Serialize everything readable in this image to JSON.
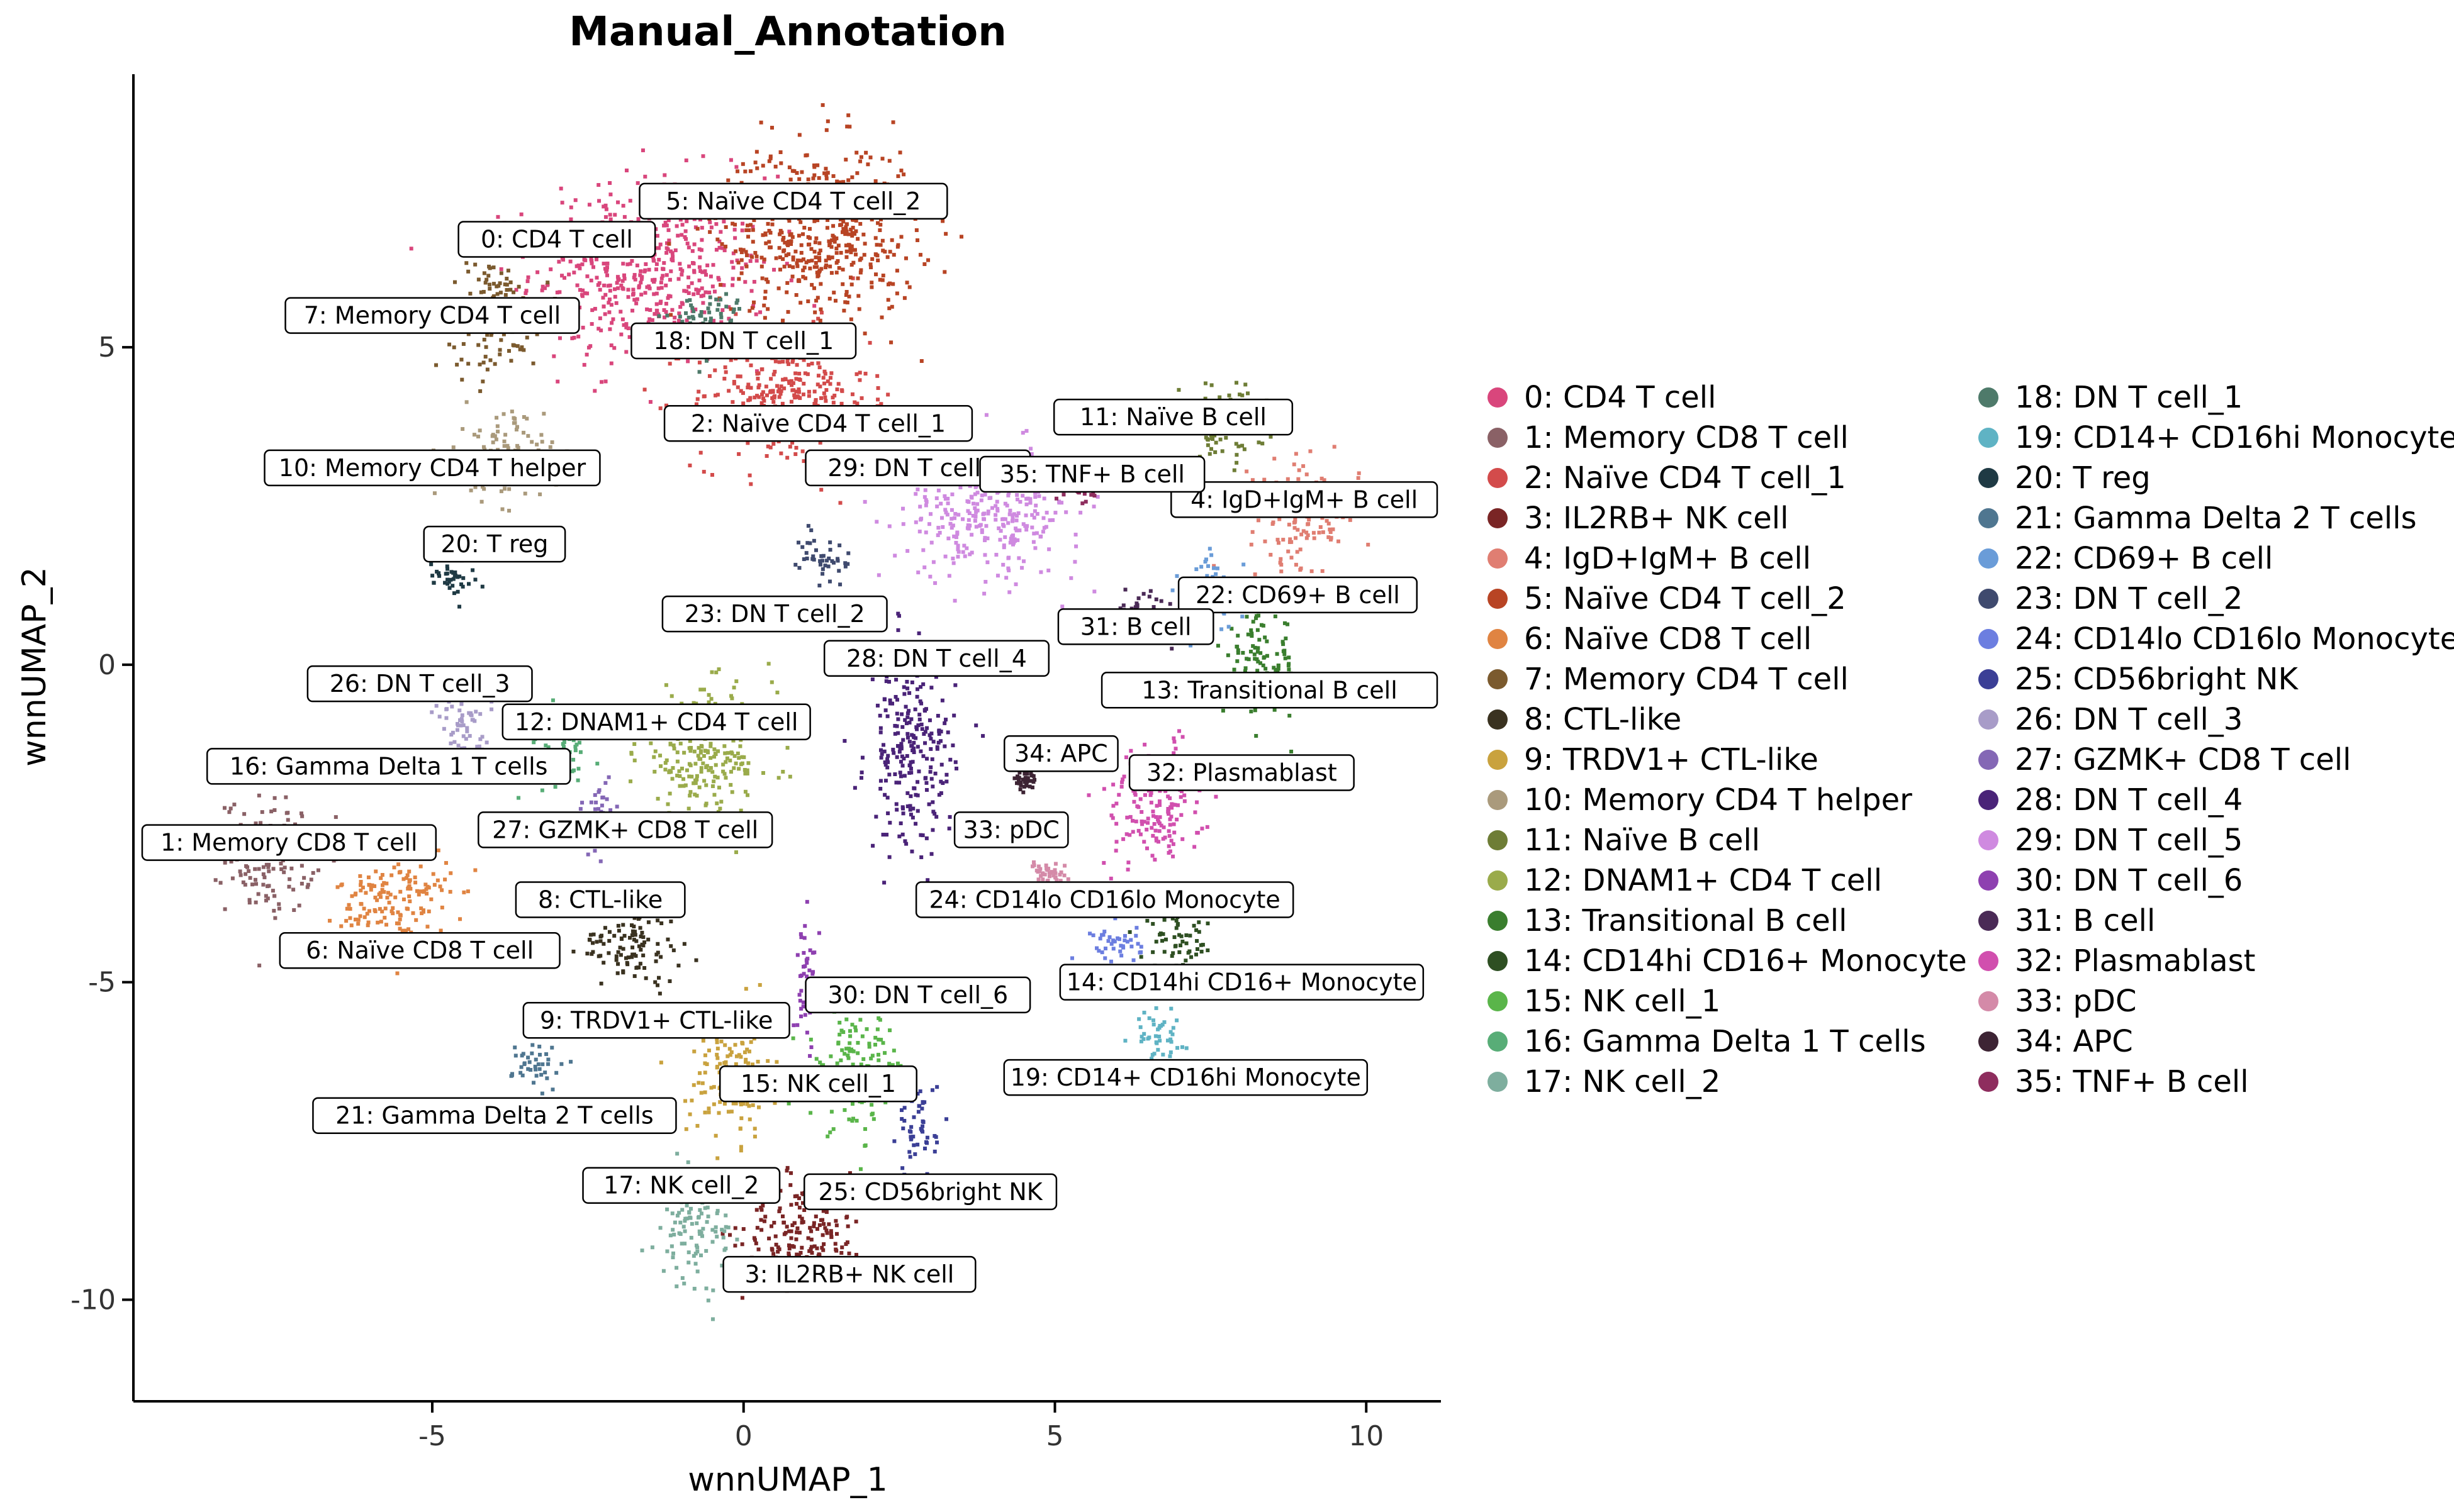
{
  "chart_data": {
    "type": "scatter",
    "title": "Manual_Annotation",
    "xlabel": "wnnUMAP_1",
    "ylabel": "wnnUMAP_2",
    "xlim": [
      -9.8,
      11.2
    ],
    "ylim": [
      -11.6,
      9.3
    ],
    "xticks": [
      -5,
      0,
      5,
      10
    ],
    "yticks": [
      5,
      0,
      -5,
      -10
    ],
    "xtick_labels": [
      "-5",
      "0",
      "5",
      "10"
    ],
    "ytick_labels": [
      "5",
      "0",
      "-5",
      "-10"
    ],
    "grid": false,
    "legend_position": "right",
    "series": [
      {
        "id": 0,
        "name": "0: CD4 T cell",
        "color": "#d9467c",
        "centroid": [
          -1.5,
          6.2
        ],
        "spread": [
          1.9,
          1.5
        ],
        "label_at": [
          -3.0,
          6.7
        ]
      },
      {
        "id": 1,
        "name": "1: Memory CD8 T cell",
        "color": "#8a6166",
        "centroid": [
          -7.6,
          -3.0
        ],
        "spread": [
          0.7,
          0.9
        ],
        "label_at": [
          -7.3,
          -2.8
        ]
      },
      {
        "id": 2,
        "name": "2: Naïve CD4 T cell_1",
        "color": "#d34b4b",
        "centroid": [
          0.6,
          4.2
        ],
        "spread": [
          1.4,
          1.1
        ],
        "label_at": [
          1.2,
          3.8
        ]
      },
      {
        "id": 3,
        "name": "3: IL2RB+ NK cell",
        "color": "#7a2525",
        "centroid": [
          1.0,
          -8.9
        ],
        "spread": [
          1.0,
          0.9
        ],
        "label_at": [
          1.7,
          -9.6
        ]
      },
      {
        "id": 4,
        "name": "4: IgD+IgM+ B cell",
        "color": "#e07e72",
        "centroid": [
          9.0,
          2.4
        ],
        "spread": [
          0.9,
          0.8
        ],
        "label_at": [
          9.5,
          2.6
        ]
      },
      {
        "id": 5,
        "name": "5: Naïve CD4 T cell_2",
        "color": "#b84424",
        "centroid": [
          1.2,
          6.8
        ],
        "spread": [
          1.6,
          1.4
        ],
        "label_at": [
          0.8,
          7.3
        ]
      },
      {
        "id": 6,
        "name": "6: Naïve CD8 T cell",
        "color": "#e08442",
        "centroid": [
          -5.6,
          -3.7
        ],
        "spread": [
          0.9,
          0.8
        ],
        "label_at": [
          -5.2,
          -4.5
        ]
      },
      {
        "id": 7,
        "name": "7: Memory CD4 T cell",
        "color": "#7b5a2e",
        "centroid": [
          -4.0,
          5.5
        ],
        "spread": [
          0.7,
          0.9
        ],
        "label_at": [
          -5.0,
          5.5
        ]
      },
      {
        "id": 8,
        "name": "8: CTL-like",
        "color": "#3a3220",
        "centroid": [
          -1.8,
          -4.4
        ],
        "spread": [
          0.8,
          0.6
        ],
        "label_at": [
          -2.3,
          -3.7
        ]
      },
      {
        "id": 9,
        "name": "9: TRDV1+ CTL-like",
        "color": "#c9a23e",
        "centroid": [
          -0.2,
          -6.5
        ],
        "spread": [
          0.7,
          1.0
        ],
        "label_at": [
          -1.4,
          -5.6
        ]
      },
      {
        "id": 10,
        "name": "10: Memory CD4 T helper",
        "color": "#aa9a7c",
        "centroid": [
          -3.9,
          3.3
        ],
        "spread": [
          0.7,
          0.7
        ],
        "label_at": [
          -5.0,
          3.1
        ]
      },
      {
        "id": 11,
        "name": "11: Naïve B cell",
        "color": "#6e7d36",
        "centroid": [
          7.7,
          3.8
        ],
        "spread": [
          0.7,
          0.6
        ],
        "label_at": [
          6.9,
          3.9
        ]
      },
      {
        "id": 12,
        "name": "12: DNAM1+ CD4 T cell",
        "color": "#9aab4b",
        "centroid": [
          -0.6,
          -1.4
        ],
        "spread": [
          1.1,
          1.0
        ],
        "label_at": [
          -1.4,
          -0.9
        ]
      },
      {
        "id": 13,
        "name": "13: Transitional B cell",
        "color": "#3a7e2e",
        "centroid": [
          8.3,
          0.0
        ],
        "spread": [
          0.6,
          0.8
        ],
        "label_at": [
          8.8,
          -0.4
        ]
      },
      {
        "id": 14,
        "name": "14: CD14hi CD16+ Monocyte",
        "color": "#2e4f22",
        "centroid": [
          7.0,
          -4.4
        ],
        "spread": [
          0.6,
          0.4
        ],
        "label_at": [
          8.0,
          -5.0
        ]
      },
      {
        "id": 15,
        "name": "15: NK cell_1",
        "color": "#5ab54a",
        "centroid": [
          1.8,
          -6.4
        ],
        "spread": [
          0.8,
          0.9
        ],
        "label_at": [
          1.2,
          -6.6
        ]
      },
      {
        "id": 16,
        "name": "16: Gamma Delta 1 T cells",
        "color": "#58ad77",
        "centroid": [
          -3.0,
          -1.4
        ],
        "spread": [
          0.5,
          0.6
        ],
        "label_at": [
          -5.7,
          -1.6
        ]
      },
      {
        "id": 17,
        "name": "17: NK cell_2",
        "color": "#7eae9e",
        "centroid": [
          -0.8,
          -8.9
        ],
        "spread": [
          0.6,
          0.8
        ],
        "label_at": [
          -1.0,
          -8.2
        ]
      },
      {
        "id": 18,
        "name": "18: DN T cell_1",
        "color": "#4e7a6a",
        "centroid": [
          -0.6,
          5.4
        ],
        "spread": [
          0.6,
          0.5
        ],
        "label_at": [
          0.0,
          5.1
        ]
      },
      {
        "id": 19,
        "name": "19: CD14+ CD16hi Monocyte",
        "color": "#5fb3c4",
        "centroid": [
          6.6,
          -5.8
        ],
        "spread": [
          0.5,
          0.4
        ],
        "label_at": [
          7.1,
          -6.5
        ]
      },
      {
        "id": 20,
        "name": "20: T reg",
        "color": "#1f3a44",
        "centroid": [
          -4.7,
          1.4
        ],
        "spread": [
          0.4,
          0.3
        ],
        "label_at": [
          -4.0,
          1.9
        ]
      },
      {
        "id": 21,
        "name": "21: Gamma Delta 2 T cells",
        "color": "#4f7690",
        "centroid": [
          -3.3,
          -6.3
        ],
        "spread": [
          0.4,
          0.4
        ],
        "label_at": [
          -4.0,
          -7.1
        ]
      },
      {
        "id": 22,
        "name": "22: CD69+ B cell",
        "color": "#6a9cd8",
        "centroid": [
          7.5,
          1.1
        ],
        "spread": [
          0.5,
          0.6
        ],
        "label_at": [
          8.9,
          1.1
        ]
      },
      {
        "id": 23,
        "name": "23: DN T cell_2",
        "color": "#3f4a6e",
        "centroid": [
          1.3,
          1.7
        ],
        "spread": [
          0.4,
          0.5
        ],
        "label_at": [
          0.5,
          0.8
        ]
      },
      {
        "id": 24,
        "name": "24: CD14lo CD16lo Monocyte",
        "color": "#6c7ee0",
        "centroid": [
          6.0,
          -4.4
        ],
        "spread": [
          0.4,
          0.3
        ],
        "label_at": [
          5.8,
          -3.7
        ]
      },
      {
        "id": 25,
        "name": "25: CD56bright NK",
        "color": "#3b3f96",
        "centroid": [
          2.8,
          -7.3
        ],
        "spread": [
          0.3,
          0.8
        ],
        "label_at": [
          3.0,
          -8.3
        ]
      },
      {
        "id": 26,
        "name": "26: DN T cell_3",
        "color": "#a89cc8",
        "centroid": [
          -4.5,
          -1.0
        ],
        "spread": [
          0.5,
          0.6
        ],
        "label_at": [
          -5.2,
          -0.3
        ]
      },
      {
        "id": 27,
        "name": "27: GZMK+ CD8 T cell",
        "color": "#8467b5",
        "centroid": [
          -2.3,
          -2.4
        ],
        "spread": [
          0.3,
          0.6
        ],
        "label_at": [
          -1.9,
          -2.6
        ]
      },
      {
        "id": 28,
        "name": "28: DN T cell_4",
        "color": "#4a2378",
        "centroid": [
          2.7,
          -1.4
        ],
        "spread": [
          0.7,
          1.6
        ],
        "label_at": [
          3.1,
          0.1
        ]
      },
      {
        "id": 29,
        "name": "29: DN T cell_5",
        "color": "#cf8ae0",
        "centroid": [
          4.0,
          2.4
        ],
        "spread": [
          1.4,
          1.0
        ],
        "label_at": [
          2.8,
          3.1
        ]
      },
      {
        "id": 30,
        "name": "30: DN T cell_6",
        "color": "#8e40b0",
        "centroid": [
          1.0,
          -4.9
        ],
        "spread": [
          0.2,
          0.9
        ],
        "label_at": [
          2.8,
          -5.2
        ]
      },
      {
        "id": 31,
        "name": "31: B cell",
        "color": "#4a2a56",
        "centroid": [
          6.4,
          0.8
        ],
        "spread": [
          0.5,
          0.4
        ],
        "label_at": [
          6.3,
          0.6
        ]
      },
      {
        "id": 32,
        "name": "32: Plasmablast",
        "color": "#d14fae",
        "centroid": [
          6.6,
          -2.2
        ],
        "spread": [
          0.8,
          1.0
        ],
        "label_at": [
          8.0,
          -1.7
        ]
      },
      {
        "id": 33,
        "name": "33: pDC",
        "color": "#d48aa8",
        "centroid": [
          4.9,
          -3.3
        ],
        "spread": [
          0.3,
          0.2
        ],
        "label_at": [
          4.3,
          -2.6
        ]
      },
      {
        "id": 34,
        "name": "34: APC",
        "color": "#3d2434",
        "centroid": [
          4.5,
          -1.8
        ],
        "spread": [
          0.15,
          0.15
        ],
        "label_at": [
          5.1,
          -1.4
        ]
      },
      {
        "id": 35,
        "name": "35: TNF+ B cell",
        "color": "#8e2d5e",
        "centroid": [
          5.4,
          2.8
        ],
        "spread": [
          0.4,
          0.3
        ],
        "label_at": [
          5.6,
          3.0
        ]
      }
    ]
  }
}
